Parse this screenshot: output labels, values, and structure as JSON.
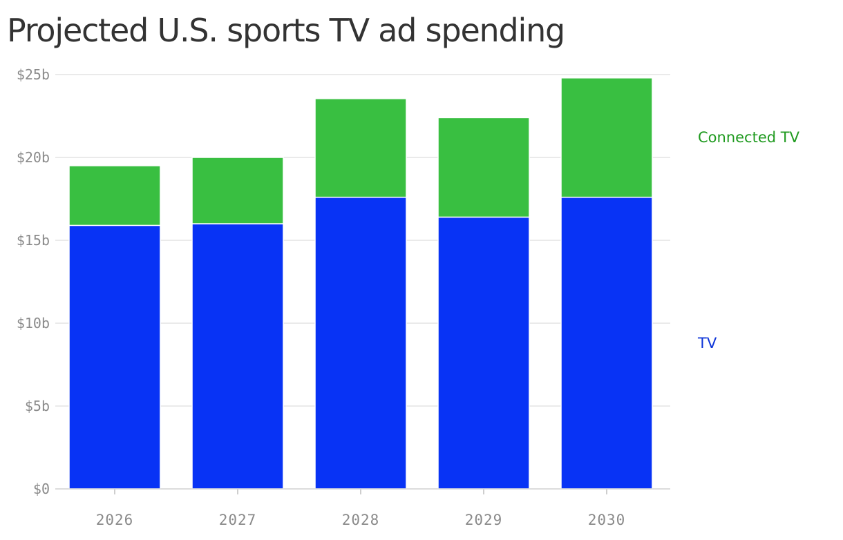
{
  "chart_data": {
    "type": "bar",
    "stacked": true,
    "title": "Projected U.S. sports TV ad spending",
    "categories": [
      "2026",
      "2027",
      "2028",
      "2029",
      "2030"
    ],
    "series": [
      {
        "name": "TV",
        "color": "#0833f5",
        "values": [
          15.9,
          16.0,
          17.6,
          16.4,
          17.6
        ]
      },
      {
        "name": "Connected TV",
        "color": "#39bf41",
        "values": [
          3.6,
          4.0,
          5.95,
          6.0,
          7.2
        ]
      }
    ],
    "legend_colors": {
      "TV": "#0b33d8",
      "Connected TV": "#1f9a1f"
    },
    "ylim": [
      0,
      25
    ],
    "yticks": [
      0,
      5,
      10,
      15,
      20,
      25
    ],
    "ytick_labels": [
      "$0",
      "$5b",
      "$10b",
      "$15b",
      "$20b",
      "$25b"
    ],
    "grid": true,
    "legend_position": "right, beside the last bar"
  }
}
